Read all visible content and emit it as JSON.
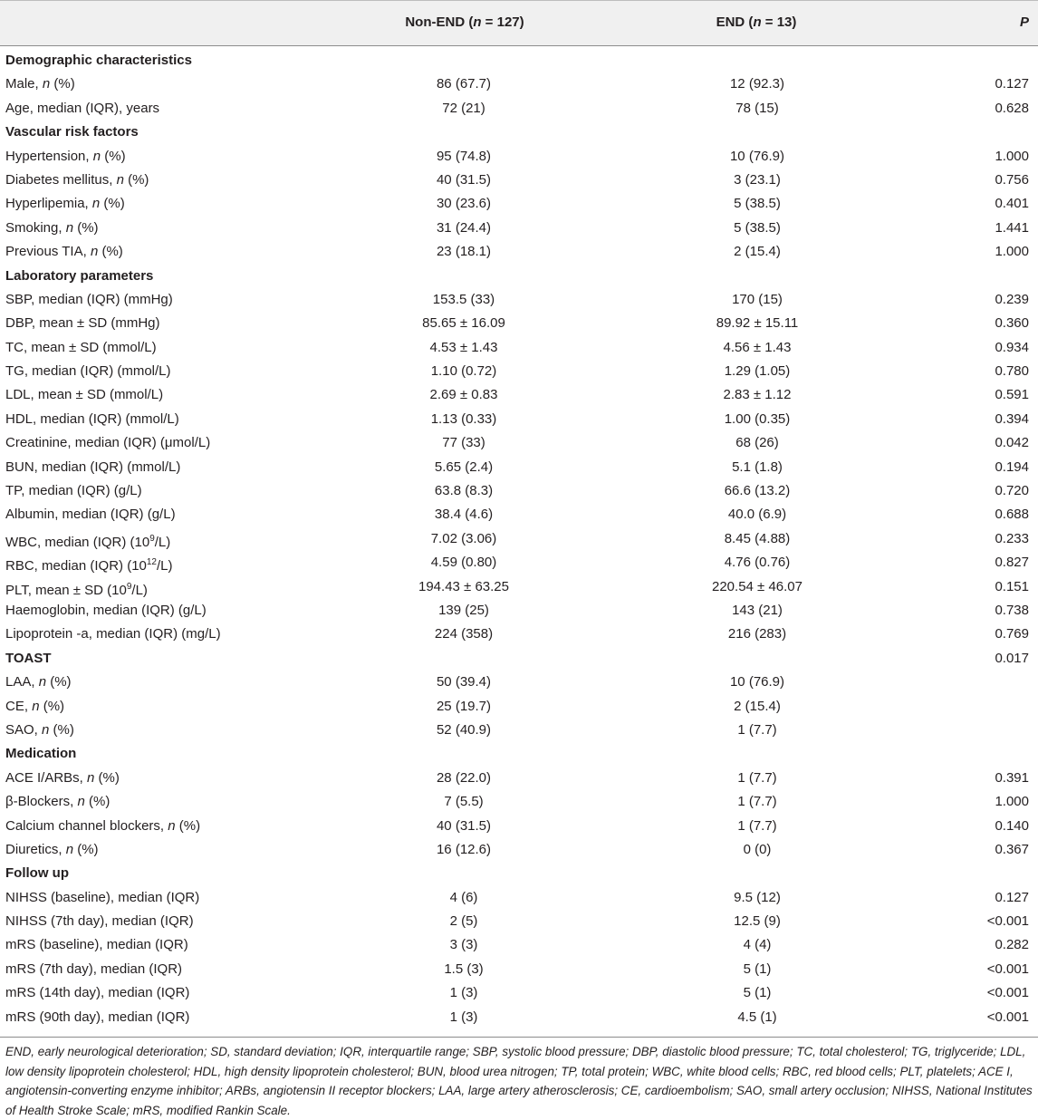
{
  "header": {
    "non_end_prefix": "Non-END (",
    "non_end_n": "n",
    "non_end_suffix": " = 127)",
    "end_prefix": "END (",
    "end_n": "n",
    "end_suffix": " = 13)",
    "p": "P"
  },
  "rows": [
    {
      "section": true,
      "label": "Demographic characteristics"
    },
    {
      "label": "Male, ",
      "italic": "n",
      "after": " (%)",
      "non_end": "86 (67.7)",
      "end": "12 (92.3)",
      "p": "0.127"
    },
    {
      "label": "Age, median (IQR), years",
      "non_end": "72 (21)",
      "end": "78 (15)",
      "p": "0.628"
    },
    {
      "section": true,
      "label": "Vascular risk factors"
    },
    {
      "label": "Hypertension, ",
      "italic": "n",
      "after": " (%)",
      "non_end": "95 (74.8)",
      "end": "10 (76.9)",
      "p": "1.000"
    },
    {
      "label": "Diabetes mellitus, ",
      "italic": "n",
      "after": " (%)",
      "non_end": "40 (31.5)",
      "end": "3 (23.1)",
      "p": "0.756"
    },
    {
      "label": "Hyperlipemia, ",
      "italic": "n",
      "after": " (%)",
      "non_end": "30 (23.6)",
      "end": "5 (38.5)",
      "p": "0.401"
    },
    {
      "label": "Smoking, ",
      "italic": "n",
      "after": " (%)",
      "non_end": "31 (24.4)",
      "end": "5 (38.5)",
      "p": "1.441"
    },
    {
      "label": "Previous TIA, ",
      "italic": "n",
      "after": " (%)",
      "non_end": "23 (18.1)",
      "end": "2 (15.4)",
      "p": "1.000"
    },
    {
      "section": true,
      "label": "Laboratory parameters"
    },
    {
      "label": "SBP, median (IQR) (mmHg)",
      "non_end": "153.5 (33)",
      "end": "170 (15)",
      "p": "0.239"
    },
    {
      "label": "DBP, mean ± SD (mmHg)",
      "non_end": "85.65 ± 16.09",
      "end": "89.92 ± 15.11",
      "p": "0.360"
    },
    {
      "label": "TC, mean ± SD (mmol/L)",
      "non_end": "4.53 ± 1.43",
      "end": "4.56 ± 1.43",
      "p": "0.934"
    },
    {
      "label": "TG, median (IQR) (mmol/L)",
      "non_end": "1.10 (0.72)",
      "end": "1.29 (1.05)",
      "p": "0.780"
    },
    {
      "label": "LDL, mean ± SD (mmol/L)",
      "non_end": "2.69 ± 0.83",
      "end": "2.83 ± 1.12",
      "p": "0.591"
    },
    {
      "label": "HDL, median (IQR) (mmol/L)",
      "non_end": "1.13 (0.33)",
      "end": "1.00 (0.35)",
      "p": "0.394"
    },
    {
      "label": "Creatinine, median (IQR) (μmol/L)",
      "non_end": "77 (33)",
      "end": "68 (26)",
      "p": "0.042"
    },
    {
      "label": "BUN, median (IQR) (mmol/L)",
      "non_end": "5.65 (2.4)",
      "end": "5.1 (1.8)",
      "p": "0.194"
    },
    {
      "label": "TP, median (IQR) (g/L)",
      "non_end": "63.8 (8.3)",
      "end": "66.6 (13.2)",
      "p": "0.720"
    },
    {
      "label": "Albumin, median (IQR) (g/L)",
      "non_end": "38.4 (4.6)",
      "end": "40.0 (6.9)",
      "p": "0.688"
    },
    {
      "label": "WBC, median (IQR) (10",
      "sup": "9",
      "after": "/L)",
      "non_end": "7.02 (3.06)",
      "end": "8.45 (4.88)",
      "p": "0.233"
    },
    {
      "label": "RBC, median (IQR) (10",
      "sup": "12",
      "after": "/L)",
      "non_end": "4.59 (0.80)",
      "end": "4.76 (0.76)",
      "p": "0.827"
    },
    {
      "label": "PLT, mean ± SD (10",
      "sup": "9",
      "after": "/L)",
      "non_end": "194.43 ± 63.25",
      "end": "220.54 ± 46.07",
      "p": "0.151"
    },
    {
      "label": "Haemoglobin, median (IQR) (g/L)",
      "non_end": "139 (25)",
      "end": "143 (21)",
      "p": "0.738"
    },
    {
      "label": "Lipoprotein -a, median (IQR) (mg/L)",
      "non_end": "224 (358)",
      "end": "216 (283)",
      "p": "0.769"
    },
    {
      "section": true,
      "label": "TOAST",
      "p": "0.017"
    },
    {
      "label": "LAA, ",
      "italic": "n",
      "after": " (%)",
      "non_end": "50 (39.4)",
      "end": "10 (76.9)"
    },
    {
      "label": "CE, ",
      "italic": "n",
      "after": " (%)",
      "non_end": "25 (19.7)",
      "end": "2 (15.4)"
    },
    {
      "label": "SAO, ",
      "italic": "n",
      "after": " (%)",
      "non_end": "52 (40.9)",
      "end": "1 (7.7)"
    },
    {
      "section": true,
      "label": "Medication"
    },
    {
      "label": "ACE I/ARBs, ",
      "italic": "n",
      "after": " (%)",
      "non_end": "28 (22.0)",
      "end": "1 (7.7)",
      "p": "0.391"
    },
    {
      "label": "β-Blockers, ",
      "italic": "n",
      "after": " (%)",
      "non_end": "7 (5.5)",
      "end": "1 (7.7)",
      "p": "1.000"
    },
    {
      "label": "Calcium channel blockers, ",
      "italic": "n",
      "after": " (%)",
      "non_end": "40 (31.5)",
      "end": "1 (7.7)",
      "p": "0.140"
    },
    {
      "label": "Diuretics, ",
      "italic": "n",
      "after": " (%)",
      "non_end": "16 (12.6)",
      "end": "0 (0)",
      "p": "0.367"
    },
    {
      "section": true,
      "label": "Follow up"
    },
    {
      "label": "NIHSS (baseline), median (IQR)",
      "non_end": "4 (6)",
      "end": "9.5 (12)",
      "p": "0.127"
    },
    {
      "label": "NIHSS (7th day), median (IQR)",
      "non_end": "2 (5)",
      "end": "12.5 (9)",
      "p": "<0.001"
    },
    {
      "label": "mRS (baseline), median (IQR)",
      "non_end": "3 (3)",
      "end": "4 (4)",
      "p": "0.282"
    },
    {
      "label": "mRS (7th day), median (IQR)",
      "non_end": "1.5 (3)",
      "end": "5 (1)",
      "p": "<0.001"
    },
    {
      "label": "mRS (14th day), median (IQR)",
      "non_end": "1 (3)",
      "end": "5 (1)",
      "p": "<0.001"
    },
    {
      "label": "mRS (90th day), median (IQR)",
      "non_end": "1 (3)",
      "end": "4.5 (1)",
      "p": "<0.001"
    }
  ],
  "footnote": "END, early neurological deterioration; SD, standard deviation; IQR, interquartile range; SBP, systolic blood pressure; DBP, diastolic blood pressure; TC, total cholesterol; TG, triglyceride; LDL, low density lipoprotein cholesterol; HDL, high density lipoprotein cholesterol; BUN, blood urea nitrogen; TP, total protein; WBC, white blood cells; RBC, red blood cells; PLT, platelets; ACE I, angiotensin-converting enzyme inhibitor; ARBs, angiotensin II receptor blockers; LAA, large artery atherosclerosis; CE, cardioembolism; SAO, small artery occlusion; NIHSS, National Institutes of Health Stroke Scale; mRS, modified Rankin Scale."
}
